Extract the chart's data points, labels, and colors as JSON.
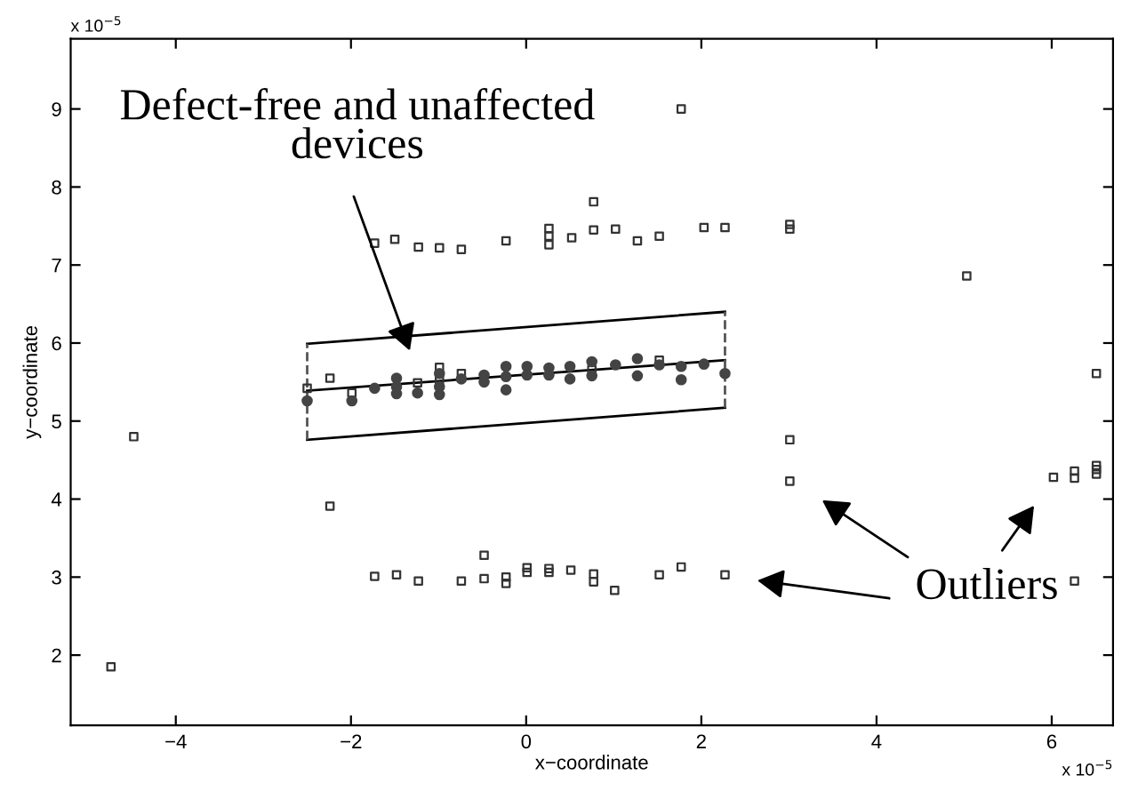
{
  "chart_data": {
    "type": "scatter",
    "xlabel": "x−coordinate",
    "ylabel": "y−coordinate",
    "xlim": [
      -5.2,
      6.7
    ],
    "ylim": [
      1.1,
      9.9
    ],
    "xticks": [
      {
        "value": -4,
        "label": "−4"
      },
      {
        "value": -2,
        "label": "−2"
      },
      0,
      2,
      4,
      6
    ],
    "yticks": [
      2,
      3,
      4,
      5,
      6,
      7,
      8,
      9
    ],
    "grid": false,
    "series": [
      {
        "marker": "square",
        "color": "#333333",
        "x": [
          -1.73,
          -1.5,
          -1.23,
          -0.99,
          -0.74,
          -0.23,
          0.26,
          0.26,
          0.26,
          0.52,
          0.77,
          0.77,
          1.02,
          1.27,
          1.52,
          2.03,
          2.27,
          3.01,
          3.01,
          1.77,
          5.03,
          6.51,
          -4.48,
          -4.74,
          -2.24,
          -1.73,
          -1.48,
          -1.23,
          -0.74,
          -0.48,
          -0.48,
          -0.23,
          -0.23,
          0.01,
          0.01,
          0.26,
          0.26,
          0.51,
          0.77,
          0.77,
          1.01,
          1.52,
          1.77,
          2.27,
          3.01,
          3.01,
          6.02,
          6.26,
          6.26,
          6.51,
          6.51,
          6.51,
          6.26,
          -2.5,
          -2.24,
          -1.99,
          -1.24,
          -0.99,
          -0.99,
          -0.74,
          0.75,
          1.52
        ],
        "values": [
          7.28,
          7.33,
          7.23,
          7.22,
          7.2,
          7.31,
          7.47,
          7.37,
          7.26,
          7.35,
          7.81,
          7.45,
          7.46,
          7.31,
          7.37,
          7.48,
          7.48,
          7.52,
          7.46,
          9.0,
          6.86,
          5.61,
          4.8,
          1.85,
          3.91,
          3.01,
          3.03,
          2.95,
          2.95,
          3.28,
          2.98,
          3.0,
          2.92,
          3.12,
          3.06,
          3.11,
          3.06,
          3.09,
          3.04,
          2.94,
          2.83,
          3.03,
          3.13,
          3.03,
          4.76,
          4.23,
          4.28,
          4.36,
          4.27,
          4.43,
          4.38,
          4.32,
          2.95,
          5.42,
          5.55,
          5.36,
          5.49,
          5.69,
          5.53,
          5.61,
          5.66,
          5.78
        ]
      },
      {
        "marker": "circle",
        "color": "#444444",
        "x": [
          -2.5,
          -1.99,
          -1.73,
          -1.48,
          -1.48,
          -1.48,
          -1.24,
          -0.99,
          -0.99,
          -0.99,
          -0.74,
          -0.48,
          -0.48,
          -0.23,
          -0.23,
          -0.23,
          0.01,
          0.01,
          0.26,
          0.26,
          0.5,
          0.5,
          0.75,
          0.75,
          1.02,
          1.27,
          1.27,
          1.52,
          1.77,
          1.77,
          2.03,
          2.27
        ],
        "values": [
          5.26,
          5.26,
          5.42,
          5.55,
          5.44,
          5.35,
          5.36,
          5.61,
          5.44,
          5.34,
          5.54,
          5.59,
          5.5,
          5.7,
          5.57,
          5.4,
          5.7,
          5.59,
          5.68,
          5.59,
          5.7,
          5.54,
          5.76,
          5.58,
          5.72,
          5.8,
          5.58,
          5.72,
          5.7,
          5.53,
          5.73,
          5.61
        ]
      },
      {
        "type": "line",
        "line_style": "solid",
        "color": "#000000",
        "x": [
          -2.5,
          2.27
        ],
        "values": [
          5.39,
          5.78
        ]
      },
      {
        "type": "line",
        "line_style": "solid",
        "color": "#000000",
        "x": [
          -2.5,
          2.27
        ],
        "values": [
          5.99,
          6.4
        ]
      },
      {
        "type": "line",
        "line_style": "solid",
        "color": "#000000",
        "x": [
          -2.5,
          2.27
        ],
        "values": [
          4.76,
          5.17
        ]
      },
      {
        "type": "line",
        "line_style": "dashed",
        "color": "#555555",
        "x": [
          -2.5,
          -2.5
        ],
        "values": [
          4.76,
          5.99
        ]
      },
      {
        "type": "line",
        "line_style": "dashed",
        "color": "#555555",
        "x": [
          2.27,
          2.27
        ],
        "values": [
          5.17,
          6.4
        ]
      }
    ],
    "annotations": [
      "Defect-free and unaffected\ndevices",
      "Outliers",
      "x 10$^{−5}$",
      "x 10$^{−5}$"
    ]
  }
}
